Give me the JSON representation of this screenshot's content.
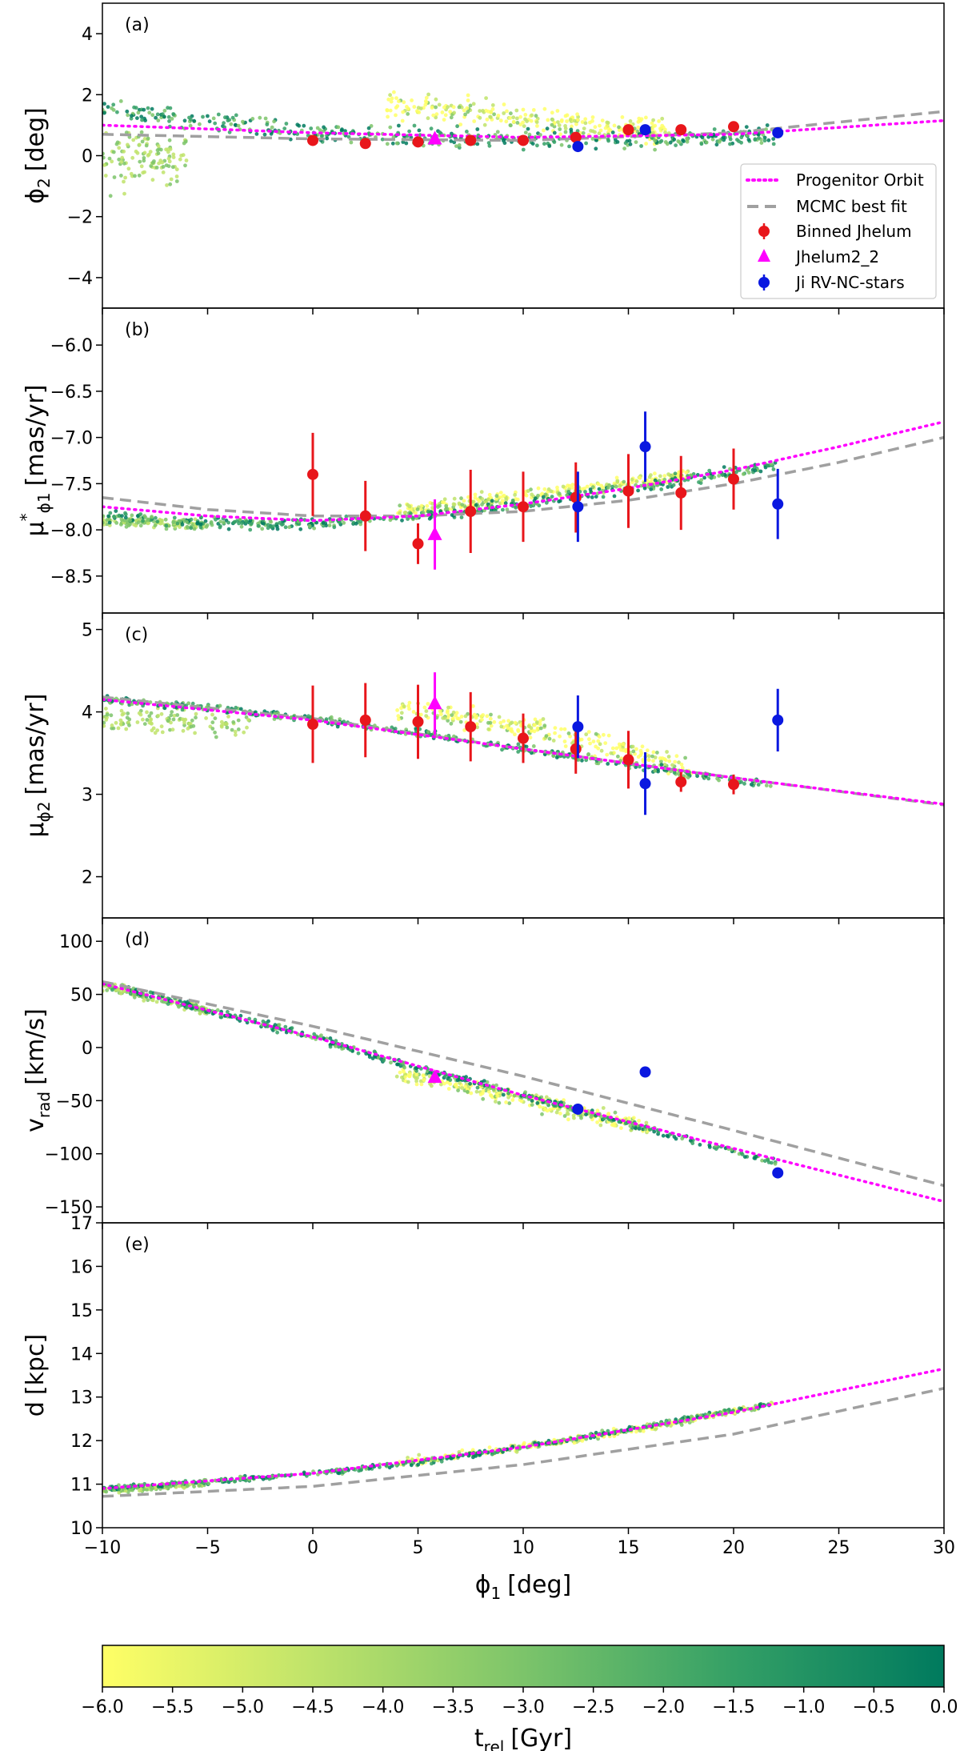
{
  "chart_data": {
    "type": "scatter",
    "description_units": {
      "x": "deg"
    },
    "x_axis": {
      "label": "ϕ₁ [deg]",
      "label_main": "ϕ",
      "label_sub": "1",
      "label_unit": "[deg]",
      "range": [
        -10,
        30
      ],
      "ticks": [
        -10,
        -5,
        0,
        5,
        10,
        15,
        20,
        25,
        30
      ],
      "tick_labels": [
        "−10",
        "−5",
        "0",
        "5",
        "10",
        "15",
        "20",
        "25",
        "30"
      ]
    },
    "colorbar": {
      "label_main": "t",
      "label_sub": "rel",
      "label_unit": "[Gyr]",
      "range": [
        -6.0,
        0.0
      ],
      "ticks": [
        -6.0,
        -5.5,
        -5.0,
        -4.5,
        -4.0,
        -3.5,
        -3.0,
        -2.5,
        -2.0,
        -1.5,
        -1.0,
        -0.5,
        0.0
      ],
      "tick_labels": [
        "−6.0",
        "−5.5",
        "−5.0",
        "−4.5",
        "−4.0",
        "−3.5",
        "−3.0",
        "−2.5",
        "−2.0",
        "−1.5",
        "−1.0",
        "−0.5",
        "0.0"
      ],
      "colors": [
        "#ffff66",
        "#bfe36a",
        "#7cc46a",
        "#34a066",
        "#007a5e"
      ]
    },
    "legend": {
      "placement": "lower-right of panel (a)",
      "entries": [
        {
          "label": "Progenitor Orbit",
          "style": "dotted",
          "color": "#ff00ff"
        },
        {
          "label": "MCMC best fit",
          "style": "dashed",
          "color": "#a0a0a0"
        },
        {
          "label": "Binned Jhelum",
          "style": "circle",
          "color": "#e8161b"
        },
        {
          "label": "Jhelum2_2",
          "style": "triangle",
          "color": "#ff00ff"
        },
        {
          "label": "Ji RV-NC-stars",
          "style": "circle",
          "color": "#0a18e0"
        }
      ]
    },
    "panels": [
      {
        "id": "a",
        "panel_label": "(a)",
        "ylabel": {
          "main": "ϕ",
          "sub": "2",
          "sup": "",
          "unit": "[deg]"
        },
        "ylim": [
          -5,
          5
        ],
        "yticks": [
          -4,
          -2,
          0,
          2,
          4
        ],
        "ytick_labels": [
          "−4",
          "−2",
          "0",
          "2",
          "4"
        ],
        "orbit": {
          "x": [
            -10,
            0,
            10,
            20,
            30
          ],
          "y": [
            1.0,
            0.75,
            0.6,
            0.7,
            1.15
          ]
        },
        "mcmc": {
          "x": [
            -10,
            0,
            10,
            20,
            30
          ],
          "y": [
            0.7,
            0.55,
            0.5,
            0.75,
            1.45
          ]
        },
        "stream": {
          "x": [
            -10,
            -5,
            0,
            5,
            10,
            15,
            20,
            22
          ],
          "y": [
            1.5,
            1.1,
            0.75,
            0.6,
            0.55,
            0.55,
            0.6,
            0.65
          ],
          "spread": 0.25
        },
        "trailing": {
          "x": [
            3.5,
            8,
            13,
            17
          ],
          "y": [
            1.7,
            1.4,
            1.0,
            0.8
          ],
          "spread": 0.35
        },
        "leading": {
          "x": [
            -10,
            -6
          ],
          "y": [
            -0.3,
            0.1
          ],
          "spread": 0.8
        },
        "binned": [
          {
            "x": 0,
            "y": 0.5,
            "err": 0
          },
          {
            "x": 2.5,
            "y": 0.4,
            "err": 0
          },
          {
            "x": 5,
            "y": 0.45,
            "err": 0
          },
          {
            "x": 7.5,
            "y": 0.5,
            "err": 0
          },
          {
            "x": 10,
            "y": 0.5,
            "err": 0
          },
          {
            "x": 12.5,
            "y": 0.6,
            "err": 0
          },
          {
            "x": 15,
            "y": 0.85,
            "err": 0
          },
          {
            "x": 17.5,
            "y": 0.85,
            "err": 0
          },
          {
            "x": 20,
            "y": 0.95,
            "err": 0
          }
        ],
        "jhelum22": [
          {
            "x": 5.8,
            "y": 0.55,
            "err": 0
          }
        ],
        "ji": [
          {
            "x": 12.6,
            "y": 0.3,
            "err": 0
          },
          {
            "x": 15.8,
            "y": 0.85,
            "err": 0
          },
          {
            "x": 22.1,
            "y": 0.75,
            "err": 0
          }
        ]
      },
      {
        "id": "b",
        "panel_label": "(b)",
        "ylabel": {
          "main": "μ",
          "sub": "ϕ1",
          "sup": "*",
          "unit": "[mas/yr]"
        },
        "ylim": [
          -8.9,
          -5.6
        ],
        "yticks": [
          -8.5,
          -8.0,
          -7.5,
          -7.0,
          -6.5,
          -6.0
        ],
        "ytick_labels": [
          "−8.5",
          "−8.0",
          "−7.5",
          "−7.0",
          "−6.5",
          "−6.0"
        ],
        "orbit": {
          "x": [
            -10,
            -5,
            0,
            5,
            10,
            15,
            20,
            25,
            30
          ],
          "y": [
            -7.75,
            -7.85,
            -7.9,
            -7.85,
            -7.72,
            -7.55,
            -7.35,
            -7.1,
            -6.83
          ]
        },
        "mcmc": {
          "x": [
            -10,
            -5,
            0,
            5,
            10,
            15,
            20,
            25,
            30
          ],
          "y": [
            -7.65,
            -7.78,
            -7.85,
            -7.85,
            -7.8,
            -7.68,
            -7.5,
            -7.27,
            -7.0
          ]
        },
        "stream": {
          "x": [
            -10,
            -5,
            0,
            5,
            10,
            15,
            20,
            22
          ],
          "y": [
            -7.85,
            -7.93,
            -7.93,
            -7.85,
            -7.72,
            -7.55,
            -7.38,
            -7.3
          ],
          "spread": 0.05
        },
        "trailing": {
          "x": [
            4,
            9,
            14,
            18
          ],
          "y": [
            -7.8,
            -7.66,
            -7.52,
            -7.4
          ],
          "spread": 0.06
        },
        "leading": {
          "x": [
            -10,
            -5
          ],
          "y": [
            -7.9,
            -7.95
          ],
          "spread": 0.04
        },
        "binned": [
          {
            "x": 0,
            "y": -7.4,
            "err": 0.45
          },
          {
            "x": 2.5,
            "y": -7.85,
            "err": 0.38
          },
          {
            "x": 5,
            "y": -8.15,
            "err": 0.22
          },
          {
            "x": 7.5,
            "y": -7.8,
            "err": 0.45
          },
          {
            "x": 10,
            "y": -7.75,
            "err": 0.38
          },
          {
            "x": 12.5,
            "y": -7.65,
            "err": 0.38
          },
          {
            "x": 15,
            "y": -7.58,
            "err": 0.4
          },
          {
            "x": 17.5,
            "y": -7.6,
            "err": 0.4
          },
          {
            "x": 20,
            "y": -7.45,
            "err": 0.33
          }
        ],
        "jhelum22": [
          {
            "x": 5.8,
            "y": -8.05,
            "err": 0.38
          }
        ],
        "ji": [
          {
            "x": 12.6,
            "y": -7.75,
            "err": 0.38
          },
          {
            "x": 15.8,
            "y": -7.1,
            "err": 0.38
          },
          {
            "x": 22.1,
            "y": -7.72,
            "err": 0.38
          }
        ]
      },
      {
        "id": "c",
        "panel_label": "(c)",
        "ylabel": {
          "main": "μ",
          "sub": "ϕ2",
          "sup": "",
          "unit": "[mas/yr]"
        },
        "ylim": [
          1.5,
          5.2
        ],
        "yticks": [
          2,
          3,
          4,
          5
        ],
        "ytick_labels": [
          "2",
          "3",
          "4",
          "5"
        ],
        "orbit": {
          "x": [
            -10,
            0,
            10,
            20,
            30
          ],
          "y": [
            4.15,
            3.9,
            3.55,
            3.2,
            2.88
          ]
        },
        "mcmc": {
          "x": [
            -10,
            0,
            10,
            20,
            30
          ],
          "y": [
            4.18,
            3.92,
            3.55,
            3.2,
            2.87
          ]
        },
        "stream": {
          "x": [
            -10,
            -5,
            0,
            5,
            10,
            15,
            20,
            22
          ],
          "y": [
            4.15,
            4.05,
            3.92,
            3.75,
            3.55,
            3.35,
            3.18,
            3.1
          ],
          "spread": 0.04
        },
        "trailing": {
          "x": [
            4,
            9,
            14,
            18
          ],
          "y": [
            4.05,
            3.85,
            3.6,
            3.3
          ],
          "spread": 0.12
        },
        "leading": {
          "x": [
            -10,
            -3
          ],
          "y": [
            3.9,
            3.85
          ],
          "spread": 0.12
        },
        "binned": [
          {
            "x": 0,
            "y": 3.85,
            "err": 0.47
          },
          {
            "x": 2.5,
            "y": 3.9,
            "err": 0.45
          },
          {
            "x": 5,
            "y": 3.88,
            "err": 0.45
          },
          {
            "x": 7.5,
            "y": 3.82,
            "err": 0.42
          },
          {
            "x": 10,
            "y": 3.68,
            "err": 0.3
          },
          {
            "x": 12.5,
            "y": 3.55,
            "err": 0.3
          },
          {
            "x": 15,
            "y": 3.42,
            "err": 0.35
          },
          {
            "x": 17.5,
            "y": 3.15,
            "err": 0.12
          },
          {
            "x": 20,
            "y": 3.12,
            "err": 0.12
          }
        ],
        "jhelum22": [
          {
            "x": 5.8,
            "y": 4.1,
            "err": 0.38
          }
        ],
        "ji": [
          {
            "x": 12.6,
            "y": 3.82,
            "err": 0.38
          },
          {
            "x": 15.8,
            "y": 3.13,
            "err": 0.38
          },
          {
            "x": 22.1,
            "y": 3.9,
            "err": 0.38
          }
        ]
      },
      {
        "id": "d",
        "panel_label": "(d)",
        "ylabel": {
          "main": "v",
          "sub": "rad",
          "sup": "",
          "unit": "[km/s]"
        },
        "ylim": [
          -165,
          122
        ],
        "yticks": [
          -150,
          -100,
          -50,
          0,
          50,
          100
        ],
        "ytick_labels": [
          "−150",
          "−100",
          "−50",
          "0",
          "50",
          "100"
        ],
        "orbit": {
          "x": [
            -10,
            0,
            10,
            20,
            30
          ],
          "y": [
            60,
            10,
            -45,
            -95,
            -145
          ]
        },
        "mcmc": {
          "x": [
            -10,
            0,
            10,
            20,
            30
          ],
          "y": [
            62,
            20,
            -27,
            -78,
            -130
          ]
        },
        "stream": {
          "x": [
            -10,
            -5,
            0,
            5,
            10,
            15,
            20,
            22
          ],
          "y": [
            60,
            35,
            10,
            -20,
            -45,
            -72,
            -98,
            -108
          ],
          "spread": 3
        },
        "trailing": {
          "x": [
            4,
            8,
            12,
            16
          ],
          "y": [
            -25,
            -40,
            -58,
            -75
          ],
          "spread": 6
        },
        "leading": {
          "x": [
            -10,
            -5
          ],
          "y": [
            58,
            35
          ],
          "spread": 4
        },
        "binned": [],
        "jhelum22": [
          {
            "x": 5.8,
            "y": -28,
            "err": 0
          }
        ],
        "ji": [
          {
            "x": 12.6,
            "y": -58,
            "err": 5
          },
          {
            "x": 15.8,
            "y": -23,
            "err": 5
          },
          {
            "x": 22.1,
            "y": -118,
            "err": 5
          }
        ]
      },
      {
        "id": "e",
        "panel_label": "(e)",
        "ylabel": {
          "main": "d",
          "sub": "",
          "sup": "",
          "unit": "[kpc]"
        },
        "ylim": [
          10,
          17
        ],
        "yticks": [
          10,
          11,
          12,
          13,
          14,
          15,
          16,
          17
        ],
        "ytick_labels": [
          "10",
          "11",
          "12",
          "13",
          "14",
          "15",
          "16",
          "17"
        ],
        "orbit": {
          "x": [
            -10,
            0,
            10,
            20,
            30
          ],
          "y": [
            10.9,
            11.25,
            11.85,
            12.65,
            13.65
          ]
        },
        "mcmc": {
          "x": [
            -10,
            0,
            10,
            20,
            30
          ],
          "y": [
            10.72,
            10.95,
            11.45,
            12.15,
            13.2
          ]
        },
        "stream": {
          "x": [
            -10,
            -5,
            0,
            5,
            10,
            15,
            20,
            22
          ],
          "y": [
            10.88,
            11.05,
            11.25,
            11.5,
            11.85,
            12.25,
            12.7,
            12.85
          ],
          "spread": 0.05
        },
        "trailing": {
          "x": [
            4,
            10,
            16,
            22
          ],
          "y": [
            11.5,
            11.85,
            12.3,
            12.85
          ],
          "spread": 0.07
        },
        "leading": {
          "x": [
            -10,
            -5
          ],
          "y": [
            10.85,
            11.0
          ],
          "spread": 0.05
        },
        "binned": [],
        "jhelum22": [],
        "ji": []
      }
    ]
  }
}
